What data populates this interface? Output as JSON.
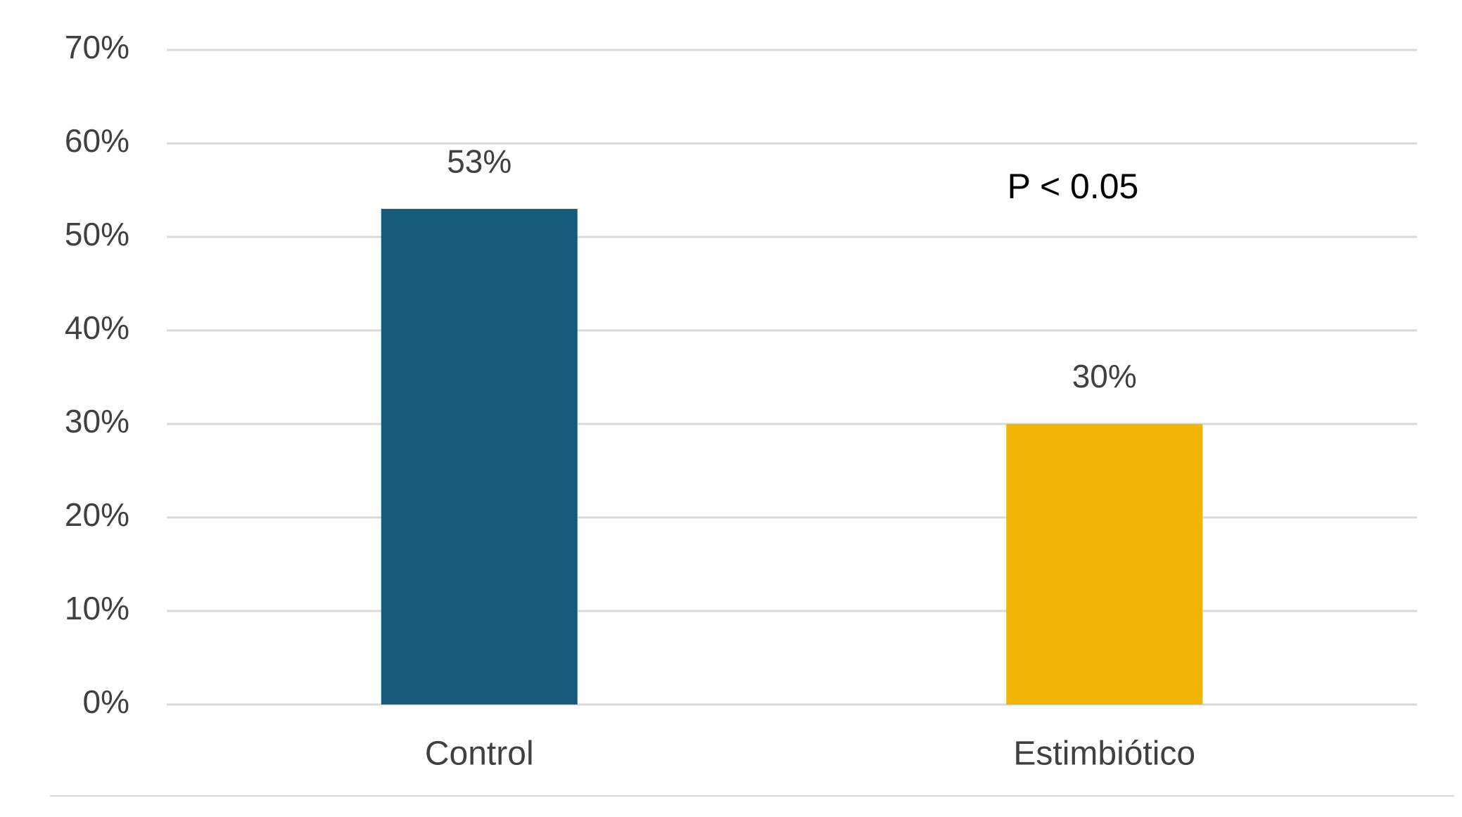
{
  "chart_data": {
    "type": "bar",
    "categories": [
      "Control",
      "Estimbiótico"
    ],
    "values": [
      53,
      30
    ],
    "value_labels": [
      "53%",
      "30%"
    ],
    "colors": [
      "#165a7c",
      "#f0b505"
    ],
    "annotation": "P < 0.05",
    "ylim": [
      0,
      70
    ],
    "yticks": [
      {
        "value": 0,
        "label": "0%"
      },
      {
        "value": 10,
        "label": "10%"
      },
      {
        "value": 20,
        "label": "20%"
      },
      {
        "value": 30,
        "label": "30%"
      },
      {
        "value": 40,
        "label": "40%"
      },
      {
        "value": 50,
        "label": "50%"
      },
      {
        "value": 60,
        "label": "60%"
      },
      {
        "value": 70,
        "label": "70%"
      }
    ],
    "grid": true
  }
}
